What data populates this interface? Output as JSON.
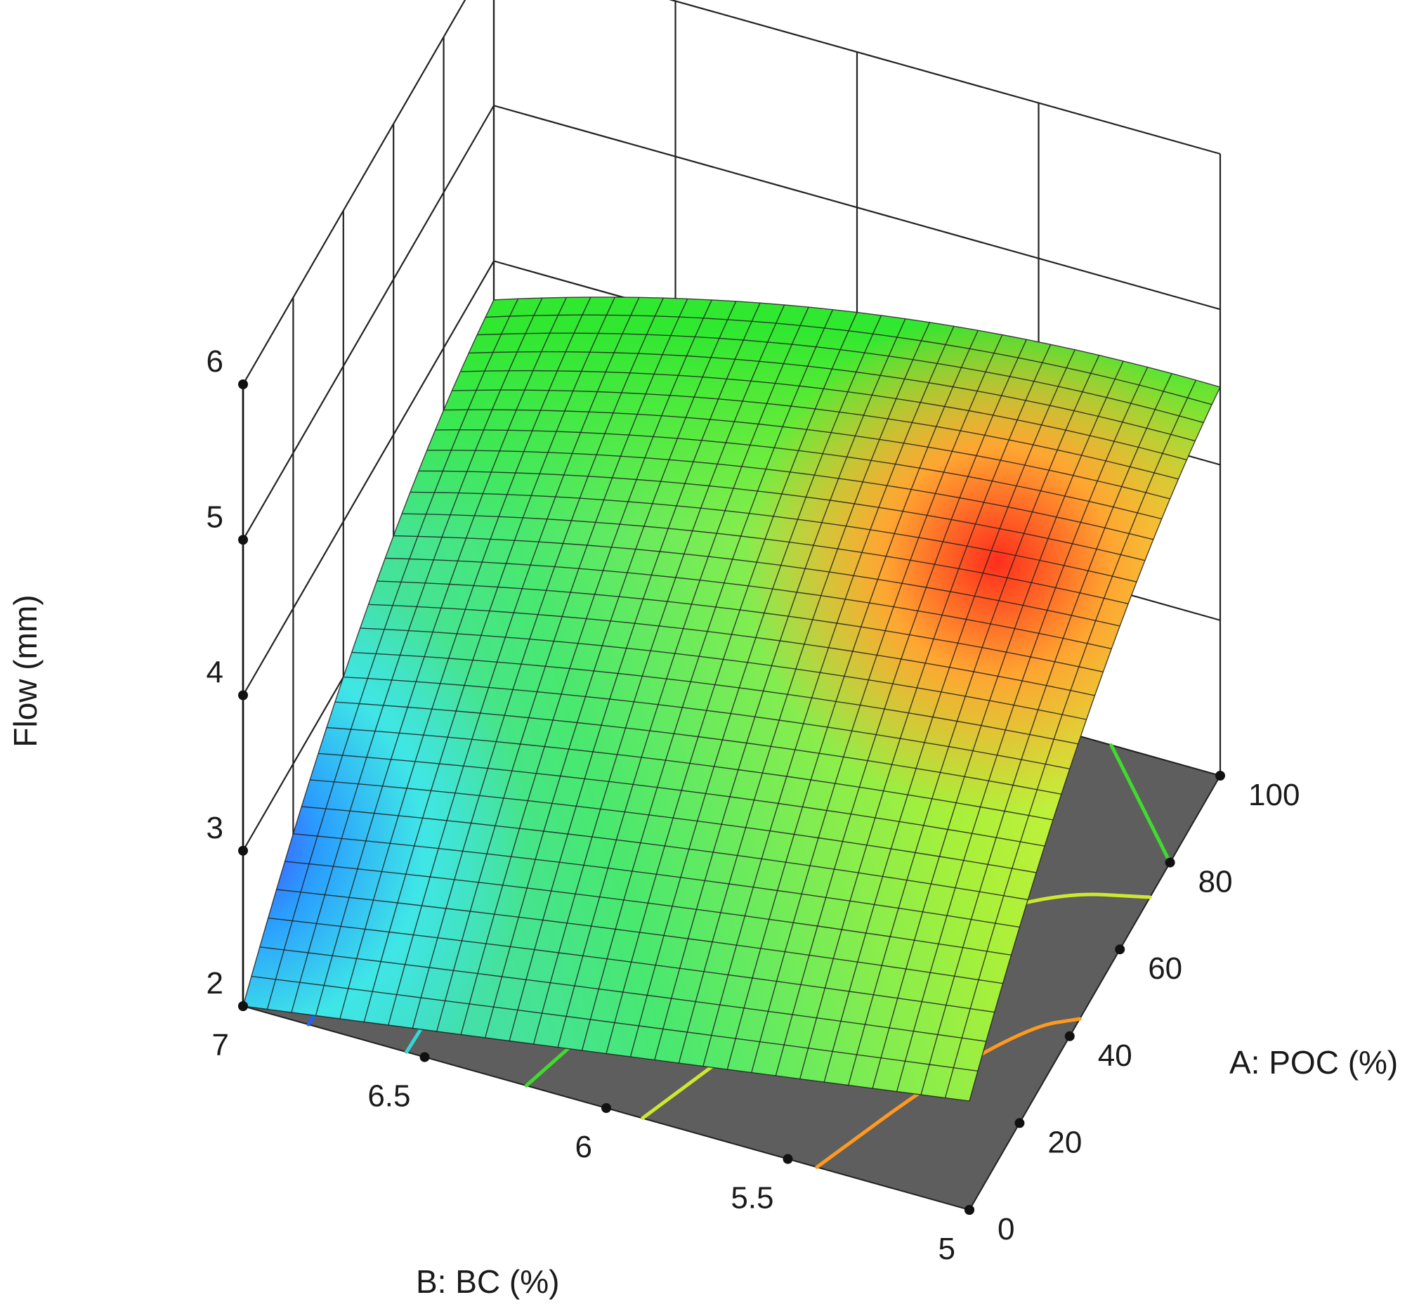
{
  "chart_data": {
    "type": "surface",
    "title": "",
    "zlabel": "Flow (mm)",
    "xlabel": "A: POC (%)",
    "ylabel": "B: BC (%)",
    "x_ticks": [
      "0",
      "20",
      "40",
      "60",
      "80",
      "100"
    ],
    "y_ticks": [
      "5",
      "5.5",
      "6",
      "6.5",
      "7"
    ],
    "z_ticks": [
      "2",
      "3",
      "4",
      "5",
      "6"
    ],
    "xlim": [
      0,
      100
    ],
    "ylim": [
      5,
      7
    ],
    "zlim": [
      2,
      6
    ],
    "grid": true,
    "floor_color": "#5e5e5e",
    "colormap": [
      "#4b3cff",
      "#2a9dff",
      "#37e6e6",
      "#3ee83e",
      "#7ef23a",
      "#e6f53a",
      "#ffb030",
      "#ff3020"
    ],
    "mesh_line_color": "#222222",
    "surface_points": [
      {
        "A": 0,
        "B": 7,
        "flow": 2.0
      },
      {
        "A": 100,
        "B": 7,
        "flow": 4.55
      },
      {
        "A": 100,
        "B": 5,
        "flow": 4.5
      },
      {
        "A": 0,
        "B": 5,
        "flow": 2.7
      },
      {
        "A": 50,
        "B": 6,
        "flow": 4.6
      }
    ],
    "contours": [
      {
        "level_color": "#1e62ff",
        "points": [
          {
            "A": 0,
            "B": 6.82
          },
          {
            "A": 100,
            "B": 6.78
          }
        ]
      },
      {
        "level_color": "#35d6d6",
        "points": [
          {
            "A": 0,
            "B": 6.55
          },
          {
            "A": 100,
            "B": 6.5
          }
        ]
      },
      {
        "level_color": "#3fdc2e",
        "points": [
          {
            "A": 0,
            "B": 6.22
          },
          {
            "A": 40,
            "B": 6.02
          },
          {
            "A": 80,
            "B": 5.88
          },
          {
            "A": 100,
            "B": 5.85
          }
        ]
      },
      {
        "level_color": "#3fdc2e",
        "points": [
          {
            "A": 100,
            "B": 5.3
          },
          {
            "A": 80,
            "B": 5.0
          }
        ]
      },
      {
        "level_color": "#cde82e",
        "points": [
          {
            "A": 0,
            "B": 5.9
          },
          {
            "A": 30,
            "B": 5.7
          },
          {
            "A": 55,
            "B": 5.45
          },
          {
            "A": 68,
            "B": 5.22
          },
          {
            "A": 72,
            "B": 5.0
          }
        ]
      },
      {
        "level_color": "#ff9a1f",
        "points": [
          {
            "A": 0,
            "B": 5.42
          },
          {
            "A": 25,
            "B": 5.25
          },
          {
            "A": 40,
            "B": 5.1
          },
          {
            "A": 44,
            "B": 5.0
          }
        ]
      }
    ]
  }
}
